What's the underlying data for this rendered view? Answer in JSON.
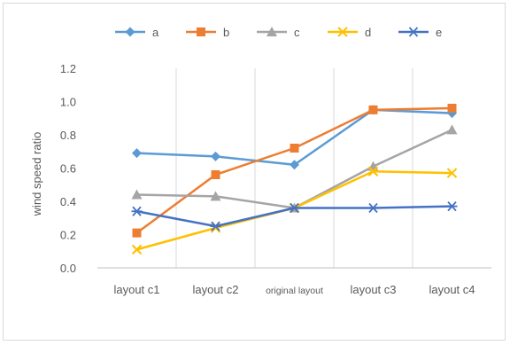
{
  "chart_data": {
    "type": "line",
    "title": "",
    "xlabel": "",
    "ylabel": "wind speed ratio",
    "categories": [
      "layout c1",
      "layout c2",
      "original layout",
      "layout c3",
      "layout c4"
    ],
    "ylim": [
      0.0,
      1.2
    ],
    "yticks": [
      "0.0",
      "0.2",
      "0.4",
      "0.6",
      "0.8",
      "1.0",
      "1.2"
    ],
    "legend_position": "top",
    "grid": "vertical",
    "series": [
      {
        "name": "a",
        "color": "#5B9BD5",
        "marker": "diamond",
        "values": [
          0.69,
          0.67,
          0.62,
          0.95,
          0.93
        ]
      },
      {
        "name": "b",
        "color": "#ED7D31",
        "marker": "square",
        "values": [
          0.21,
          0.56,
          0.72,
          0.95,
          0.96
        ]
      },
      {
        "name": "c",
        "color": "#A5A5A5",
        "marker": "triangle",
        "values": [
          0.44,
          0.43,
          0.36,
          0.61,
          0.83
        ]
      },
      {
        "name": "d",
        "color": "#FFC000",
        "marker": "x",
        "values": [
          0.11,
          0.24,
          0.36,
          0.58,
          0.57
        ]
      },
      {
        "name": "e",
        "color": "#4472C4",
        "marker": "star",
        "values": [
          0.34,
          0.25,
          0.36,
          0.36,
          0.37
        ]
      }
    ]
  }
}
